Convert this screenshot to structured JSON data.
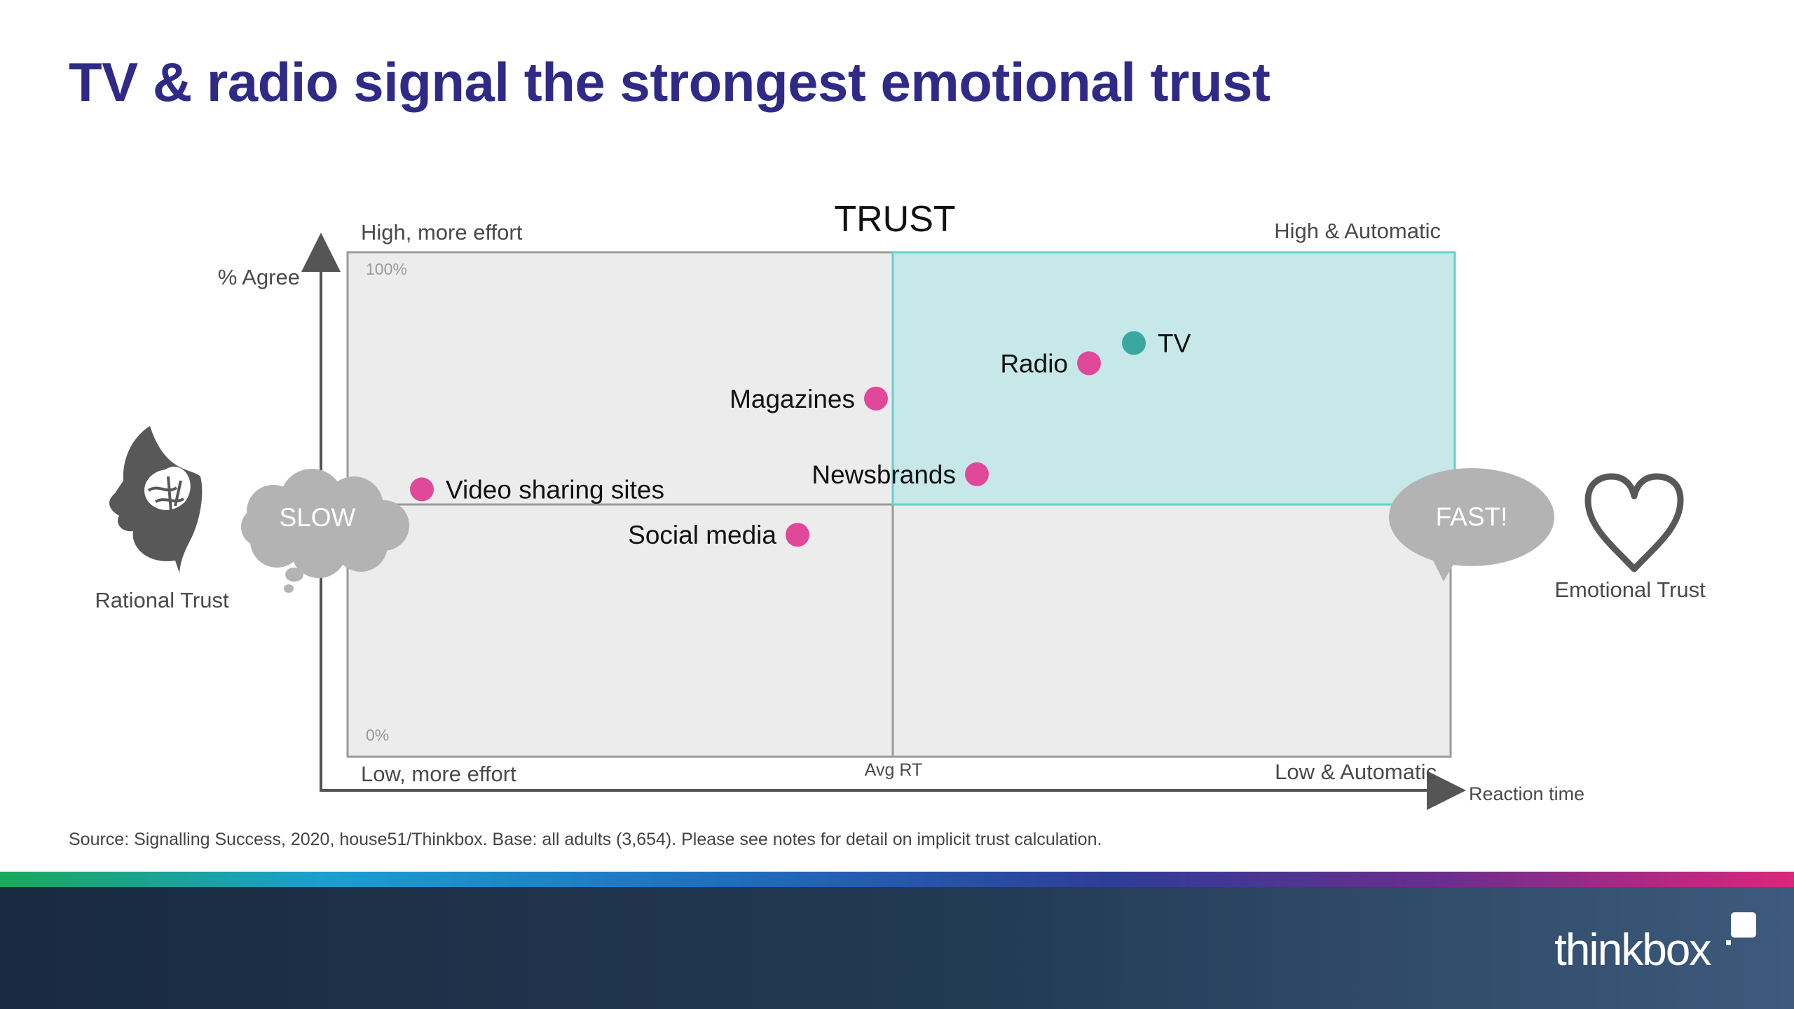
{
  "slide": {
    "title": "TV & radio signal the strongest emotional trust",
    "source": "Source: Signalling Success, 2020, house51/Thinkbox. Base: all adults (3,654). Please see notes for detail on implicit trust calculation.",
    "brand": "thinkbox"
  },
  "chart_data": {
    "type": "scatter",
    "title": "TRUST",
    "xlabel": "Reaction time",
    "ylabel": "% Agree",
    "ylim": [
      0,
      100
    ],
    "y_ticks": [
      "100%",
      "0%"
    ],
    "x_center_label": "Avg RT",
    "x_axis_note": "x = relative reaction speed (-1 = slow, 0 = Avg RT, +1 = fast); y = % Agree",
    "quadrants": {
      "top_left": "High, more effort",
      "top_right": "High & Automatic",
      "bottom_left": "Low, more effort",
      "bottom_right": "Low & Automatic"
    },
    "side_labels": {
      "left_bubble": "SLOW",
      "right_bubble": "FAST!",
      "left_caption": "Rational Trust",
      "right_caption": "Emotional Trust"
    },
    "colors": {
      "highlight_quadrant": "#c6e8e8",
      "highlight_border": "#6ccdc9",
      "quadrant_fill": "#ececec",
      "pink_point": "#e0489a",
      "teal_point": "#3aa8a0"
    },
    "points": [
      {
        "label": "TV",
        "x": 0.43,
        "y": 82,
        "color": "#3aa8a0",
        "label_side": "right"
      },
      {
        "label": "Radio",
        "x": 0.35,
        "y": 78,
        "color": "#e0489a",
        "label_side": "left"
      },
      {
        "label": "Magazines",
        "x": -0.03,
        "y": 71,
        "color": "#e0489a",
        "label_side": "left"
      },
      {
        "label": "Newsbrands",
        "x": 0.15,
        "y": 56,
        "color": "#e0489a",
        "label_side": "left"
      },
      {
        "label": "Video sharing sites",
        "x": -0.84,
        "y": 53,
        "color": "#e0489a",
        "label_side": "right"
      },
      {
        "label": "Social media",
        "x": -0.17,
        "y": 44,
        "color": "#e0489a",
        "label_side": "left"
      }
    ]
  }
}
